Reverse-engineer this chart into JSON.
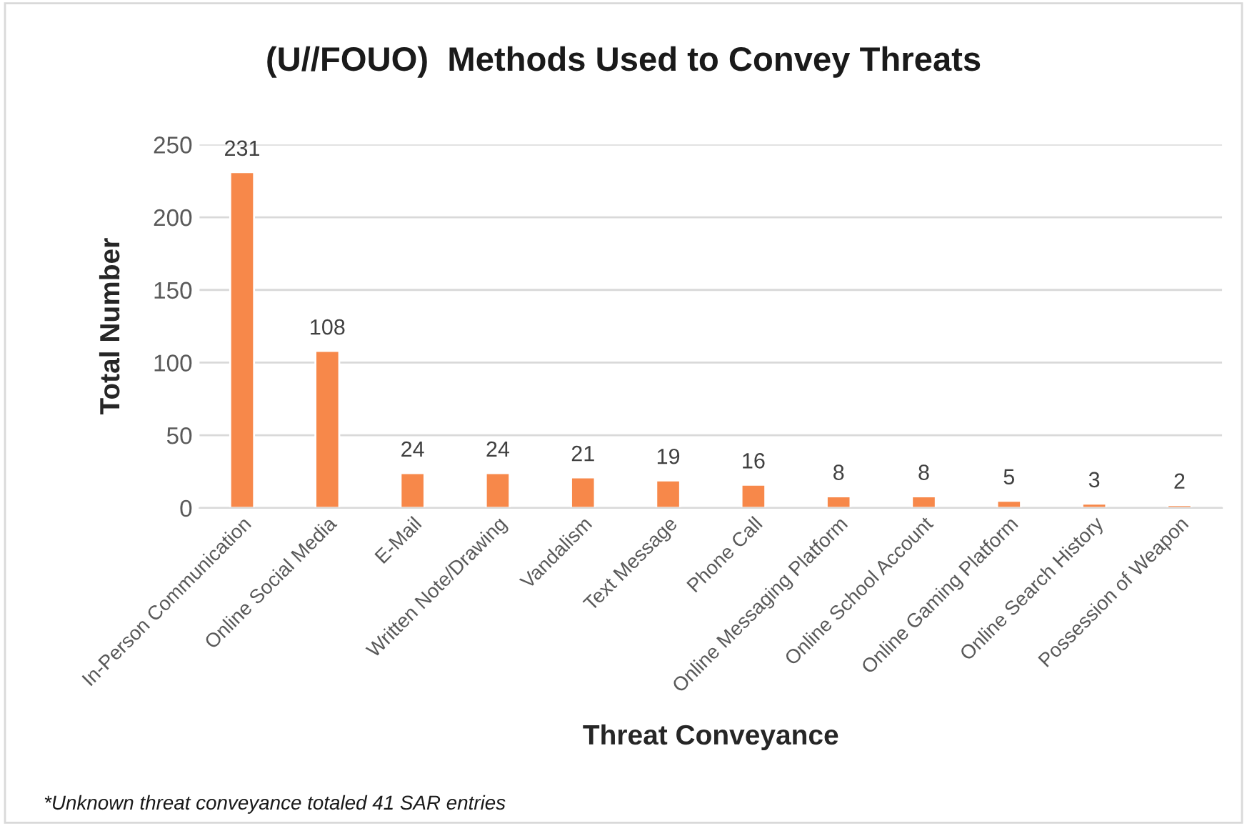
{
  "chart_data": {
    "type": "bar",
    "title": "(U//FOUO)  Methods Used to Convey Threats",
    "xlabel": "Threat Conveyance",
    "ylabel": "Total Number",
    "categories": [
      "In-Person Communication",
      "Online Social Media",
      "E-Mail",
      "Written Note/Drawing",
      "Vandalism",
      "Text Message",
      "Phone Call",
      "Online Messaging Platform",
      "Online School Account",
      "Online Gaming Platform",
      "Online Search History",
      "Possession of Weapon"
    ],
    "values": [
      231,
      108,
      24,
      24,
      21,
      19,
      16,
      8,
      8,
      5,
      3,
      2
    ],
    "color": "#f7884a",
    "ylim": [
      0,
      250
    ],
    "yticks": [
      0,
      50,
      100,
      150,
      200,
      250
    ],
    "grid": "y",
    "data_labels": true,
    "annotations": [
      "*Unknown threat conveyance totaled 41 SAR entries"
    ]
  }
}
